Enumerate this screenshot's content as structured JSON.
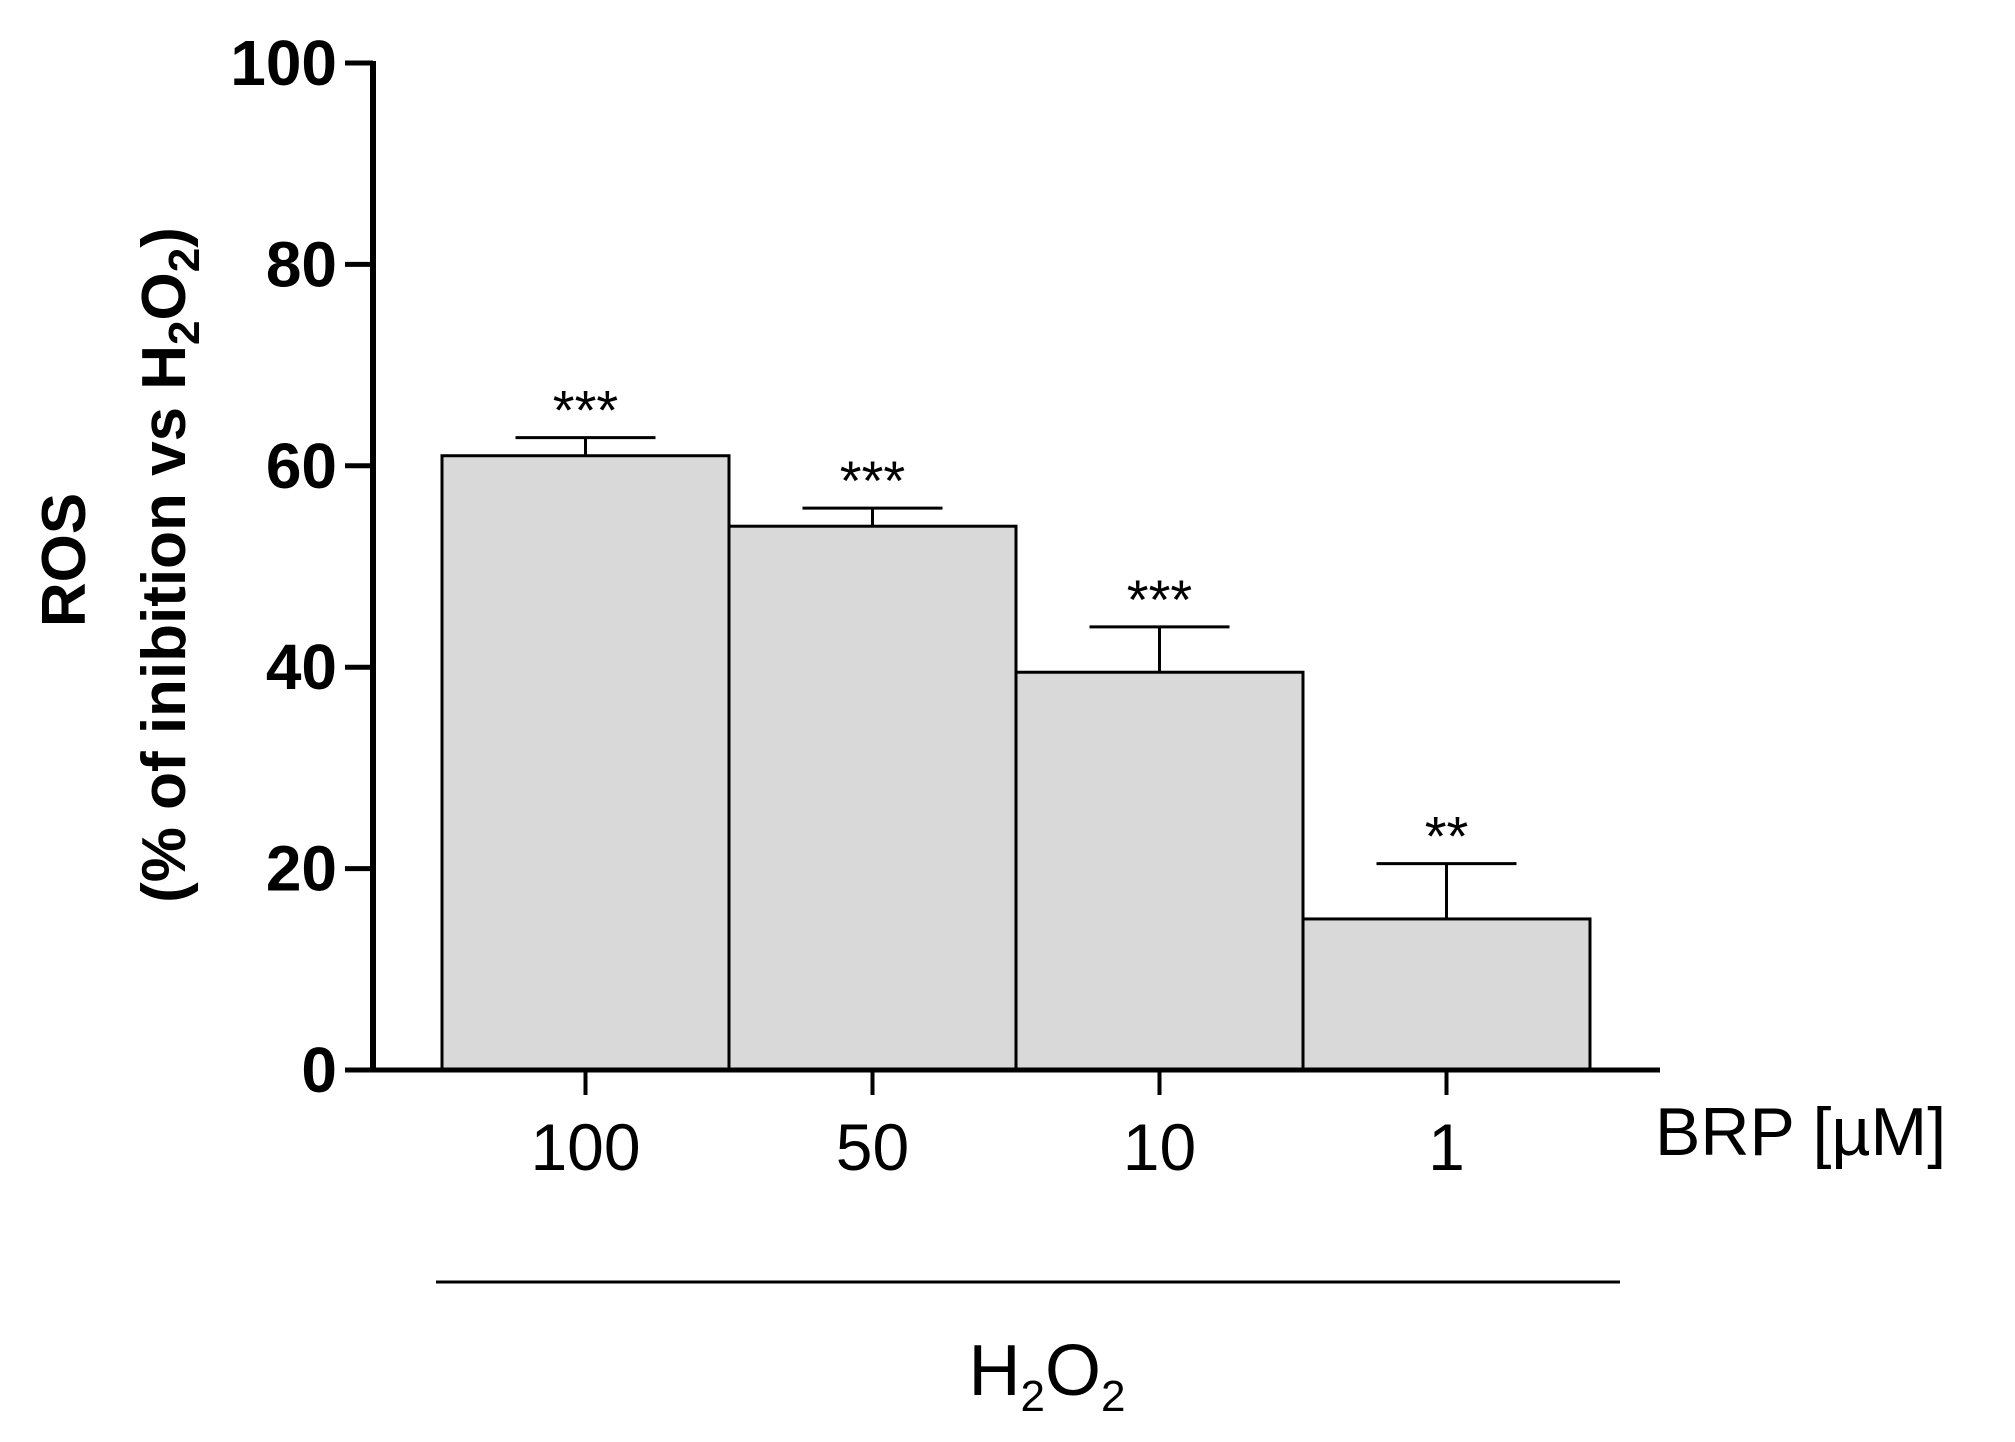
{
  "chart_data": {
    "type": "bar",
    "ylabel_line1": "ROS",
    "ylabel_line2_prefix": "(% of inibition vs H",
    "ylabel_line2_sub1": "2",
    "ylabel_line2_mid": "O",
    "ylabel_line2_sub2": "2",
    "ylabel_line2_suffix": ")",
    "ylim": [
      0,
      100
    ],
    "yticks": [
      "0",
      "20",
      "40",
      "60",
      "80",
      "100"
    ],
    "x_unit_label": "BRP [µM]",
    "categories": [
      "100",
      "50",
      "10",
      "1"
    ],
    "values": [
      61,
      54,
      39.5,
      15
    ],
    "errors": [
      1.8,
      1.8,
      4.5,
      5.5
    ],
    "significance": [
      "***",
      "***",
      "***",
      "**"
    ],
    "group_label_main": "H",
    "group_label_sub1": "2",
    "group_label_mid": "O",
    "group_label_sub2": "2",
    "bar_color": "#d9d9d9",
    "grid": false
  }
}
